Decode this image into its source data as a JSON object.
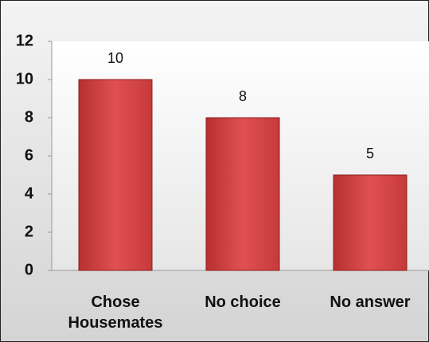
{
  "chart_data": {
    "type": "bar",
    "categories": [
      "Chose Housemates",
      "No choice",
      "No answer"
    ],
    "values": [
      10,
      8,
      5
    ],
    "color": "#c9383a",
    "ylim": [
      0,
      12
    ],
    "yticks": [
      0,
      2,
      4,
      6,
      8,
      10,
      12
    ],
    "grid": false
  }
}
